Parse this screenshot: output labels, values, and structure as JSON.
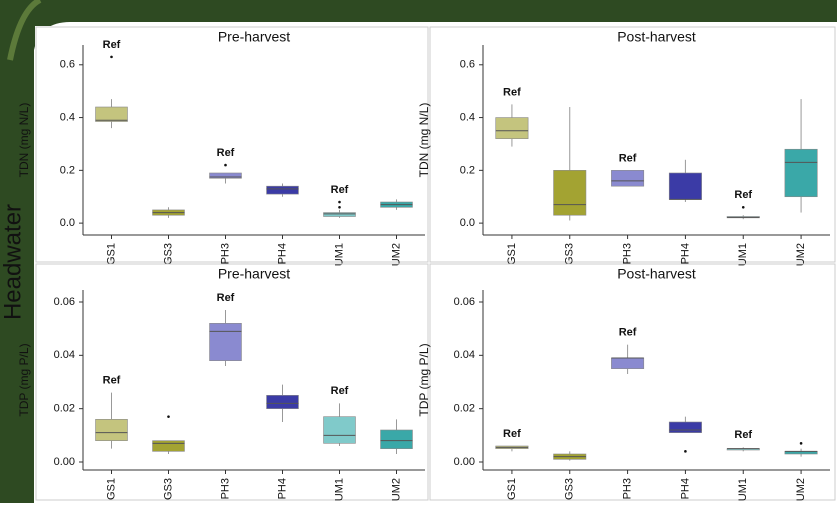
{
  "row_label": "Headwater",
  "chart_data": [
    {
      "type": "box",
      "title": "Pre-harvest",
      "ylabel": "TDN (mg N/L)",
      "categories": [
        "GS1",
        "GS3",
        "PH3",
        "PH4",
        "UM1",
        "UM2"
      ],
      "colors": [
        "#c4c47e",
        "#a3a332",
        "#8a8ad0",
        "#3b3ba6",
        "#80caca",
        "#3aa8a8"
      ],
      "min": [
        0.36,
        0.02,
        0.15,
        0.1,
        0.02,
        0.05
      ],
      "q1": [
        0.385,
        0.03,
        0.17,
        0.11,
        0.025,
        0.06
      ],
      "median": [
        0.39,
        0.04,
        0.175,
        0.13,
        0.035,
        0.07
      ],
      "q3": [
        0.44,
        0.05,
        0.19,
        0.14,
        0.04,
        0.08
      ],
      "max": [
        0.47,
        0.06,
        0.19,
        0.15,
        0.05,
        0.09
      ],
      "outliers": [
        [
          0.63
        ],
        [],
        [
          0.22
        ],
        [],
        [
          0.06,
          0.08
        ],
        []
      ],
      "ref_labels": [
        "Ref",
        null,
        "Ref",
        null,
        "Ref",
        null
      ],
      "ylim": [
        -0.045,
        0.675
      ],
      "yticks": [
        {
          "value": 0,
          "label": "0.0"
        },
        0.2,
        0.4,
        0.6
      ]
    },
    {
      "type": "box",
      "title": "Post-harvest",
      "ylabel": "TDN (mg N/L)",
      "categories": [
        "GS1",
        "GS3",
        "PH3",
        "PH4",
        "UM1",
        "UM2"
      ],
      "colors": [
        "#c4c47e",
        "#a3a332",
        "#8a8ad0",
        "#3b3ba6",
        "#80caca",
        "#3aa8a8"
      ],
      "min": [
        0.29,
        0.01,
        0.14,
        0.08,
        0.015,
        0.04
      ],
      "q1": [
        0.32,
        0.03,
        0.14,
        0.09,
        0.02,
        0.1
      ],
      "median": [
        0.35,
        0.07,
        0.16,
        0.09,
        0.022,
        0.23
      ],
      "q3": [
        0.4,
        0.2,
        0.2,
        0.19,
        0.025,
        0.28
      ],
      "max": [
        0.45,
        0.44,
        0.2,
        0.24,
        0.03,
        0.47
      ],
      "outliers": [
        [],
        [],
        [],
        [],
        [
          0.06
        ],
        []
      ],
      "ref_labels": [
        "Ref",
        null,
        "Ref",
        null,
        "Ref",
        null
      ],
      "ylim": [
        -0.045,
        0.675
      ],
      "yticks": [
        {
          "value": 0,
          "label": "0.0"
        },
        0.2,
        0.4,
        0.6
      ]
    },
    {
      "type": "box",
      "title": "Pre-harvest",
      "ylabel": "TDP (mg P/L)",
      "categories": [
        "GS1",
        "GS3",
        "PH3",
        "PH4",
        "UM1",
        "UM2"
      ],
      "colors": [
        "#c4c47e",
        "#a3a332",
        "#8a8ad0",
        "#3b3ba6",
        "#80caca",
        "#3aa8a8"
      ],
      "min": [
        0.005,
        0.003,
        0.036,
        0.015,
        0.006,
        0.003
      ],
      "q1": [
        0.008,
        0.004,
        0.038,
        0.02,
        0.007,
        0.005
      ],
      "median": [
        0.011,
        0.007,
        0.049,
        0.022,
        0.01,
        0.008
      ],
      "q3": [
        0.016,
        0.008,
        0.052,
        0.025,
        0.017,
        0.012
      ],
      "max": [
        0.026,
        0.008,
        0.057,
        0.029,
        0.022,
        0.016
      ],
      "outliers": [
        [],
        [
          0.017
        ],
        [],
        [],
        [],
        []
      ],
      "ref_labels": [
        "Ref",
        null,
        "Ref",
        null,
        "Ref",
        null
      ],
      "ylim": [
        -0.003,
        0.0645
      ],
      "yticks": [
        {
          "value": 0,
          "label": "0.00"
        },
        {
          "value": 0.02,
          "label": "0.02"
        },
        {
          "value": 0.04,
          "label": "0.04"
        },
        {
          "value": 0.06,
          "label": "0.06"
        }
      ]
    },
    {
      "type": "box",
      "title": "Post-harvest",
      "ylabel": "TDP (mg P/L)",
      "categories": [
        "GS1",
        "GS3",
        "PH3",
        "PH4",
        "UM1",
        "UM2"
      ],
      "colors": [
        "#c4c47e",
        "#a3a332",
        "#8a8ad0",
        "#3b3ba6",
        "#80caca",
        "#3aa8a8"
      ],
      "min": [
        0.004,
        0.0005,
        0.033,
        0.011,
        0.004,
        0.002
      ],
      "q1": [
        0.005,
        0.001,
        0.035,
        0.011,
        0.0045,
        0.003
      ],
      "median": [
        0.0055,
        0.002,
        0.039,
        0.012,
        0.005,
        0.004
      ],
      "q3": [
        0.006,
        0.003,
        0.039,
        0.015,
        0.005,
        0.004
      ],
      "max": [
        0.006,
        0.004,
        0.044,
        0.017,
        0.0055,
        0.005
      ],
      "outliers": [
        [],
        [],
        [],
        [
          0.004
        ],
        [],
        [
          0.007
        ]
      ],
      "ref_labels": [
        "Ref",
        null,
        "Ref",
        null,
        "Ref",
        null
      ],
      "ylim": [
        -0.003,
        0.0645
      ],
      "yticks": [
        {
          "value": 0,
          "label": "0.00"
        },
        {
          "value": 0.02,
          "label": "0.02"
        },
        {
          "value": 0.04,
          "label": "0.04"
        },
        {
          "value": 0.06,
          "label": "0.06"
        }
      ]
    }
  ]
}
